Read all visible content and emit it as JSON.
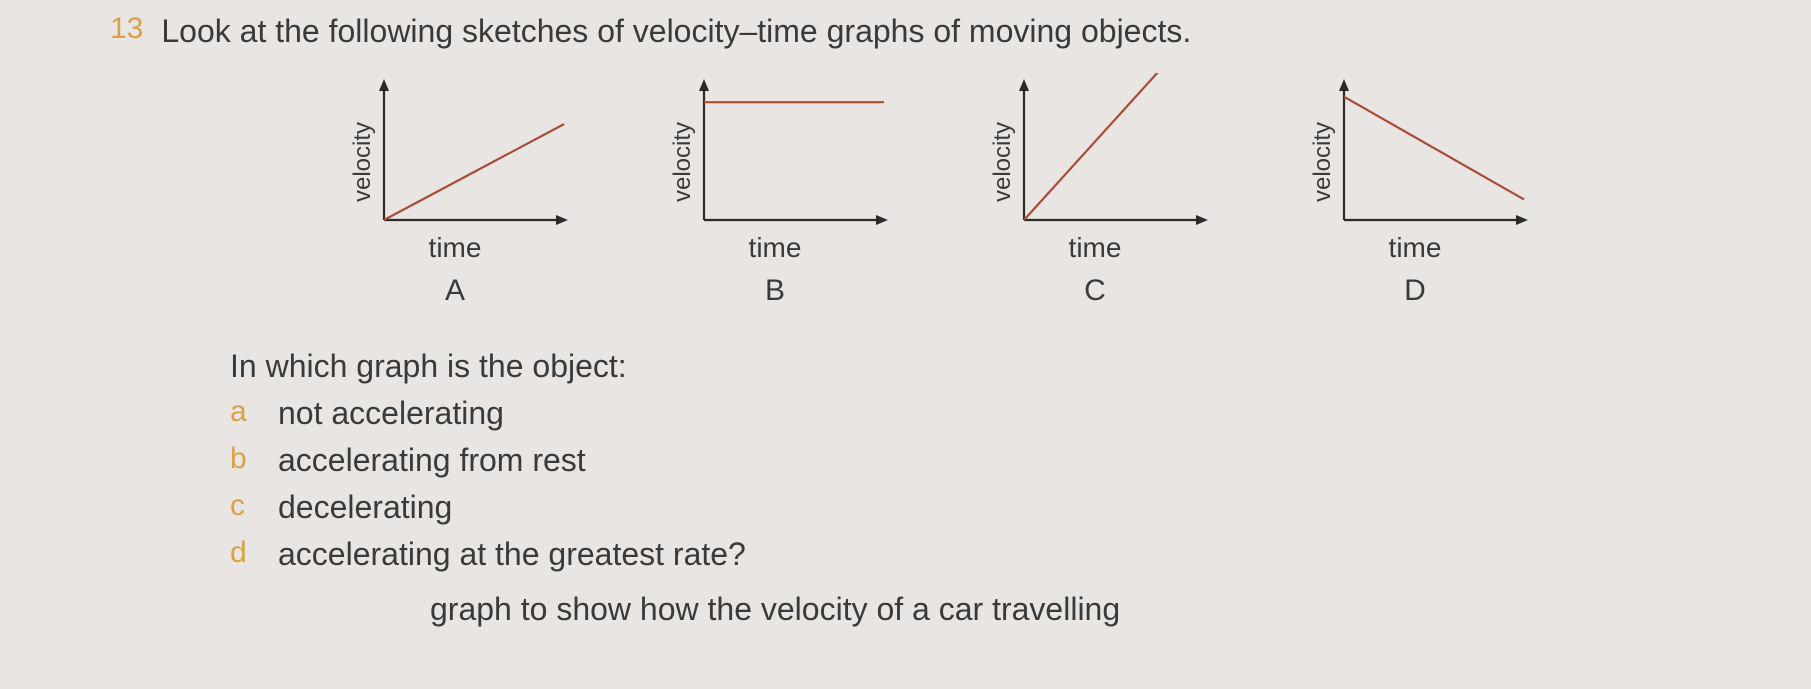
{
  "question_number": "13",
  "question_text": "Look at the following sketches of velocity–time graphs of moving objects.",
  "axis_color": "#2a2a2a",
  "line_color": "#a84c3a",
  "background_color": "#e8e5e2",
  "text_color": "#3a3a3a",
  "accent_color": "#d9a24a",
  "graph_font_size": 28,
  "body_font_size": 32,
  "graphs": [
    {
      "letter": "A",
      "x_label": "time",
      "y_label": "velocity",
      "type": "line",
      "xlim": [
        0,
        10
      ],
      "ylim": [
        0,
        10
      ],
      "points": [
        [
          0,
          0
        ],
        [
          10,
          7
        ]
      ]
    },
    {
      "letter": "B",
      "x_label": "time",
      "y_label": "velocity",
      "type": "line",
      "xlim": [
        0,
        10
      ],
      "ylim": [
        0,
        10
      ],
      "points": [
        [
          0,
          8.6
        ],
        [
          10,
          8.6
        ]
      ]
    },
    {
      "letter": "C",
      "x_label": "time",
      "y_label": "velocity",
      "type": "line",
      "xlim": [
        0,
        10
      ],
      "ylim": [
        0,
        10
      ],
      "points": [
        [
          0,
          0
        ],
        [
          8,
          11.6
        ]
      ]
    },
    {
      "letter": "D",
      "x_label": "time",
      "y_label": "velocity",
      "type": "line",
      "xlim": [
        0,
        10
      ],
      "ylim": [
        0,
        10
      ],
      "points": [
        [
          0,
          9
        ],
        [
          10,
          1.5
        ]
      ]
    }
  ],
  "sub_lead": "In which graph is the object:",
  "sub_questions": [
    {
      "letter": "a",
      "text": "not accelerating"
    },
    {
      "letter": "b",
      "text": "accelerating from rest"
    },
    {
      "letter": "c",
      "text": "decelerating"
    },
    {
      "letter": "d",
      "text": "accelerating at the greatest rate?"
    }
  ],
  "cutoff_text": "graph to show how the velocity of a car travelling"
}
